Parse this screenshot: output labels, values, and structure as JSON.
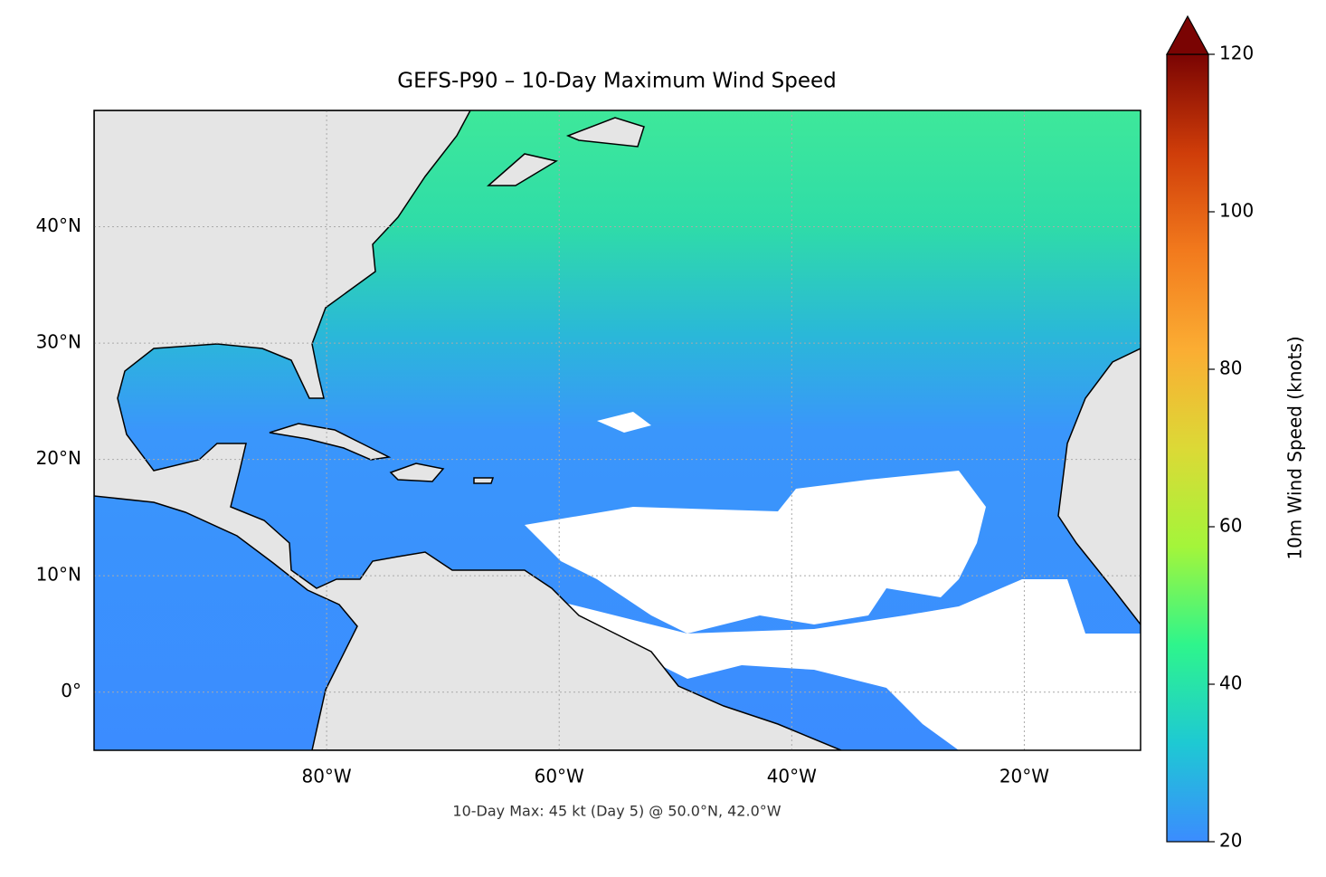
{
  "chart_data": {
    "type": "map",
    "title": "GEFS-P90 – 10-Day Maximum Wind Speed",
    "annotation": "10-Day Max: 45 kt (Day 5) @ 50.0°N, 42.0°W",
    "xlim": [
      -100,
      -10
    ],
    "ylim": [
      -5,
      50
    ],
    "xticks": [
      {
        "value": -80,
        "label": "80°W"
      },
      {
        "value": -60,
        "label": "60°W"
      },
      {
        "value": -40,
        "label": "40°W"
      },
      {
        "value": -20,
        "label": "20°W"
      }
    ],
    "yticks": [
      {
        "value": 0,
        "label": "0°"
      },
      {
        "value": 10,
        "label": "10°N"
      },
      {
        "value": 20,
        "label": "20°N"
      },
      {
        "value": 30,
        "label": "30°N"
      },
      {
        "value": 40,
        "label": "40°N"
      }
    ],
    "grid": true,
    "colorbar": {
      "label": "10m Wind Speed (knots)",
      "lim": [
        20,
        120
      ],
      "ticks": [
        20,
        40,
        60,
        80,
        100,
        120
      ],
      "extend": "max",
      "colors": [
        "#3b8cff",
        "#1ec9d3",
        "#2ef58c",
        "#a4f53a",
        "#dcd936",
        "#fbad33",
        "#f27a1d",
        "#cf3d09",
        "#7a0403"
      ]
    }
  }
}
